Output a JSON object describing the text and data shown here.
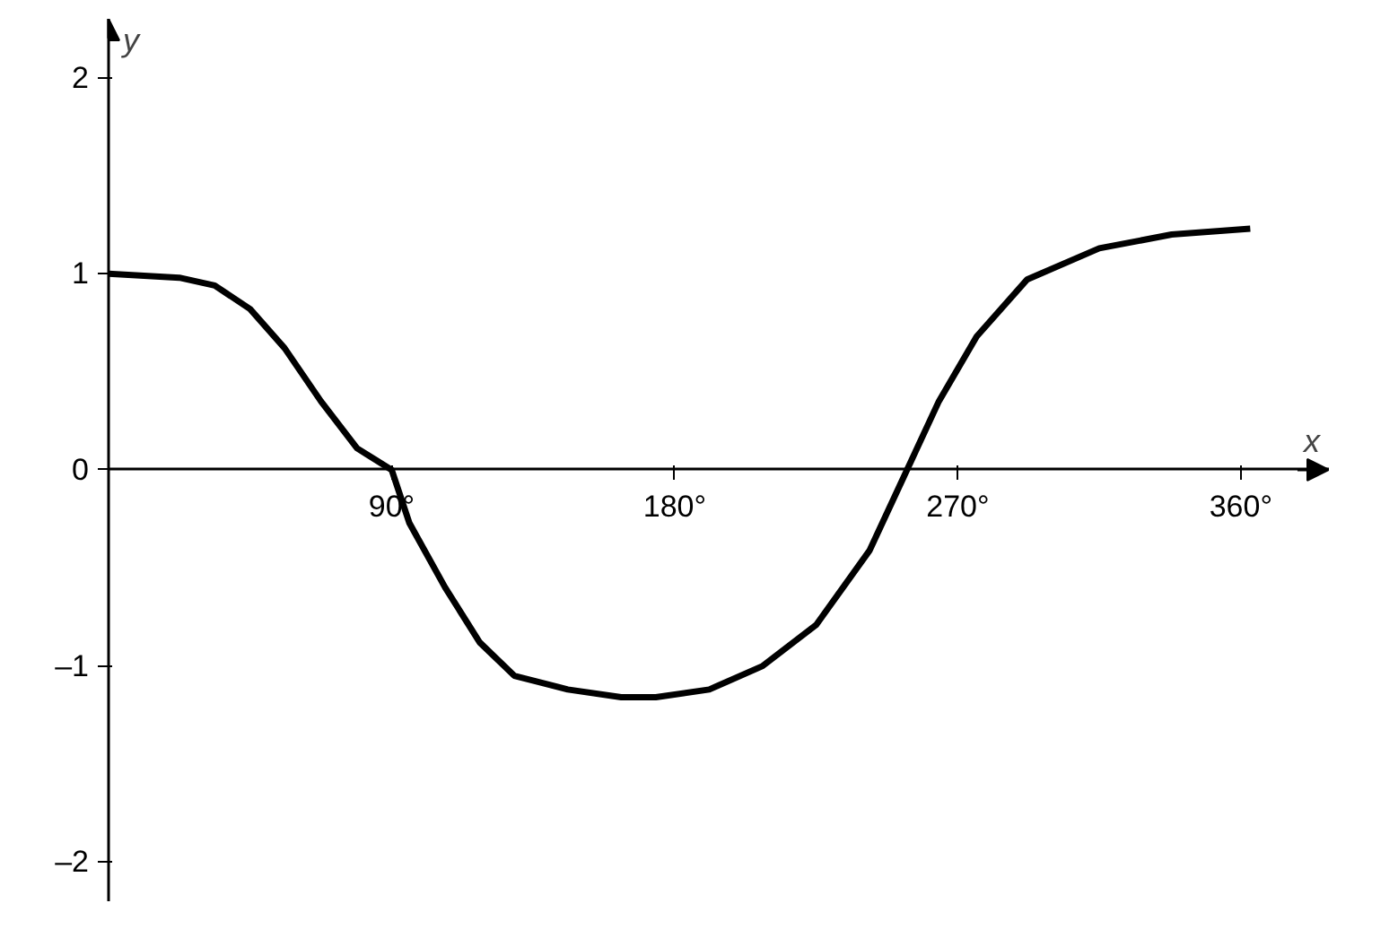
{
  "chart_data": {
    "type": "line",
    "xlabel": "x",
    "ylabel": "y",
    "x": [
      0,
      22.5,
      33.75,
      45,
      56,
      67.5,
      79,
      90,
      95.6,
      107,
      118,
      129,
      146,
      163,
      174,
      191,
      208,
      225,
      242,
      253,
      264,
      276,
      292,
      315,
      338,
      363
    ],
    "series": [
      {
        "color": "#000000",
        "values": [
          1.0,
          0.98,
          0.94,
          0.82,
          0.62,
          0.35,
          0.11,
          0.0,
          -0.27,
          -0.6,
          -0.88,
          -1.05,
          -1.12,
          -1.16,
          -1.16,
          -1.12,
          -1.0,
          -0.79,
          -0.41,
          -0.03,
          0.35,
          0.68,
          0.97,
          1.13,
          1.2,
          1.23
        ]
      }
    ],
    "xlim": [
      0,
      388
    ],
    "ylim": [
      -2.2,
      2.3
    ],
    "xticks": [
      {
        "value": 90,
        "label": "90°"
      },
      {
        "value": 180,
        "label": "180°"
      },
      {
        "value": 270,
        "label": "270°"
      },
      {
        "value": 360,
        "label": "360°"
      }
    ],
    "yticks": [
      {
        "value": -2,
        "label": "–2"
      },
      {
        "value": -1,
        "label": "–1"
      },
      0,
      1,
      2
    ],
    "grid": false,
    "marker": "none",
    "line_style": "solid"
  }
}
